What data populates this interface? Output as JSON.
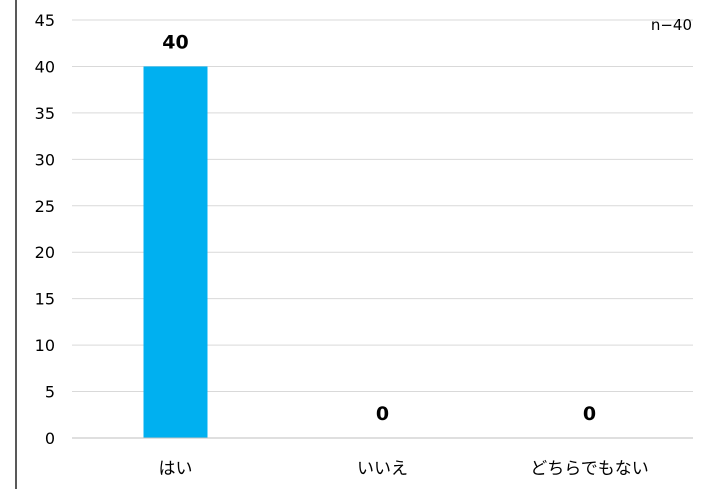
{
  "chart_data": {
    "type": "bar",
    "categories": [
      "はい",
      "いいえ",
      "どちらでもない"
    ],
    "values": [
      40,
      0,
      0
    ],
    "data_labels": [
      "40",
      "0",
      "0"
    ],
    "ylim": [
      0,
      45
    ],
    "yticks": [
      0,
      5,
      10,
      15,
      20,
      25,
      30,
      35,
      40,
      45
    ],
    "ytick_labels": [
      "0",
      "5",
      "10",
      "15",
      "20",
      "25",
      "30",
      "35",
      "40",
      "45"
    ],
    "annotation": "n−40",
    "title": "",
    "xlabel": "",
    "ylabel": "",
    "grid": true,
    "legend": "none",
    "colors": {
      "bar": "#00b0f0",
      "grid": "#d9d9d9",
      "axis": "#bfbfbf",
      "frame": "#595959",
      "text": "#000000"
    }
  }
}
